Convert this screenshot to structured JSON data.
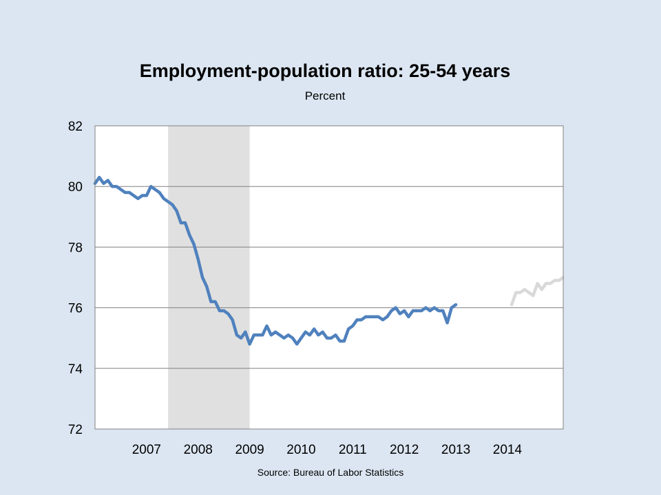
{
  "chart_data": {
    "type": "line",
    "title": "Employment-population ratio: 25-54 years",
    "subtitle": "Percent",
    "source": "Source: Bureau of Labor Statistics",
    "x_unit": "month",
    "x_start": "2006-07",
    "x_categories": [
      "2007",
      "2008",
      "2009",
      "2010",
      "2011",
      "2012",
      "2013",
      "2014"
    ],
    "ylim": [
      72,
      82
    ],
    "y_ticks": [
      72,
      74,
      76,
      78,
      80,
      82
    ],
    "grid": "horizontal",
    "legend": "none",
    "recession_shading": {
      "start": "2007-12",
      "end": "2009-06",
      "color": "#e0e0e0"
    },
    "series": [
      {
        "kind": "actual",
        "color": "#4f81bd",
        "start": "2006-07",
        "values": [
          80.1,
          80.3,
          80.1,
          80.2,
          80.0,
          80.0,
          79.9,
          79.8,
          79.8,
          79.7,
          79.6,
          79.7,
          79.7,
          80.0,
          79.9,
          79.8,
          79.6,
          79.5,
          79.4,
          79.2,
          78.8,
          78.8,
          78.4,
          78.1,
          77.6,
          77.0,
          76.7,
          76.2,
          76.2,
          75.9,
          75.9,
          75.8,
          75.6,
          75.1,
          75.0,
          75.2,
          74.8,
          75.1,
          75.1,
          75.1,
          75.4,
          75.1,
          75.2,
          75.1,
          75.0,
          75.1,
          75.0,
          74.8,
          75.0,
          75.2,
          75.1,
          75.3,
          75.1,
          75.2,
          75.0,
          75.0,
          75.1,
          74.9,
          74.9,
          75.3,
          75.4,
          75.6,
          75.6,
          75.7,
          75.7,
          75.7,
          75.7,
          75.6,
          75.7,
          75.9,
          76.0,
          75.8,
          75.9,
          75.7,
          75.9,
          75.9,
          75.9,
          76.0,
          75.9,
          76.0,
          75.9,
          75.9,
          75.5,
          76.0,
          76.1
        ]
      },
      {
        "kind": "projected",
        "color": "#d9d9d9",
        "start": "2014-08",
        "values": [
          76.1,
          76.5,
          76.5,
          76.6,
          76.5,
          76.4,
          76.8,
          76.6,
          76.8,
          76.8,
          76.9,
          76.9,
          77.0
        ]
      }
    ]
  }
}
